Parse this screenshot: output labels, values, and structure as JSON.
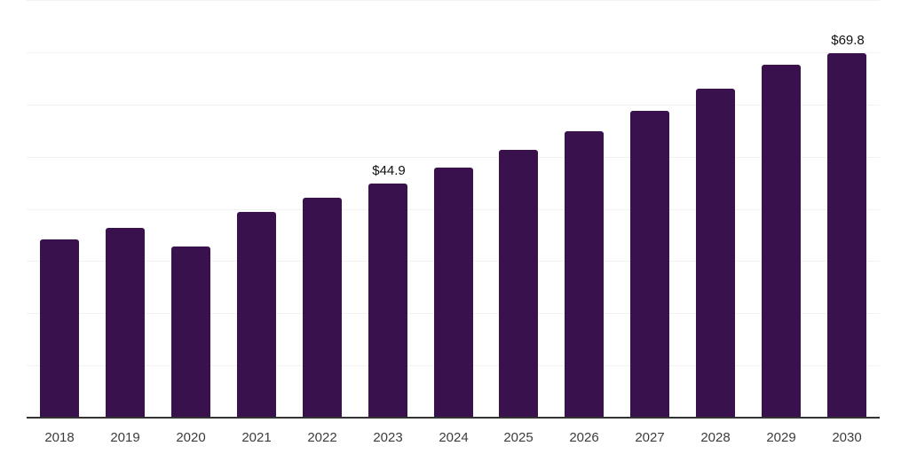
{
  "chart_data": {
    "type": "bar",
    "title": "",
    "xlabel": "",
    "ylabel": "",
    "categories": [
      "2018",
      "2019",
      "2020",
      "2021",
      "2022",
      "2023",
      "2024",
      "2025",
      "2026",
      "2027",
      "2028",
      "2029",
      "2030"
    ],
    "values": [
      34.1,
      36.3,
      32.8,
      39.4,
      42.2,
      44.9,
      47.9,
      51.3,
      54.9,
      58.8,
      63.0,
      67.6,
      69.8
    ],
    "annotations": [
      {
        "category": "2023",
        "text": "$44.9"
      },
      {
        "category": "2030",
        "text": "$69.8"
      }
    ],
    "ylim": [
      0,
      80
    ],
    "gridline_step": 10,
    "grid": "horizontal",
    "legend": "none",
    "colors": {
      "bar": "#38114d",
      "grid": "#f2f2f2",
      "axis": "#333333",
      "tick_label": "#3c3c3c",
      "value_label": "#111111",
      "background": "#ffffff"
    }
  }
}
